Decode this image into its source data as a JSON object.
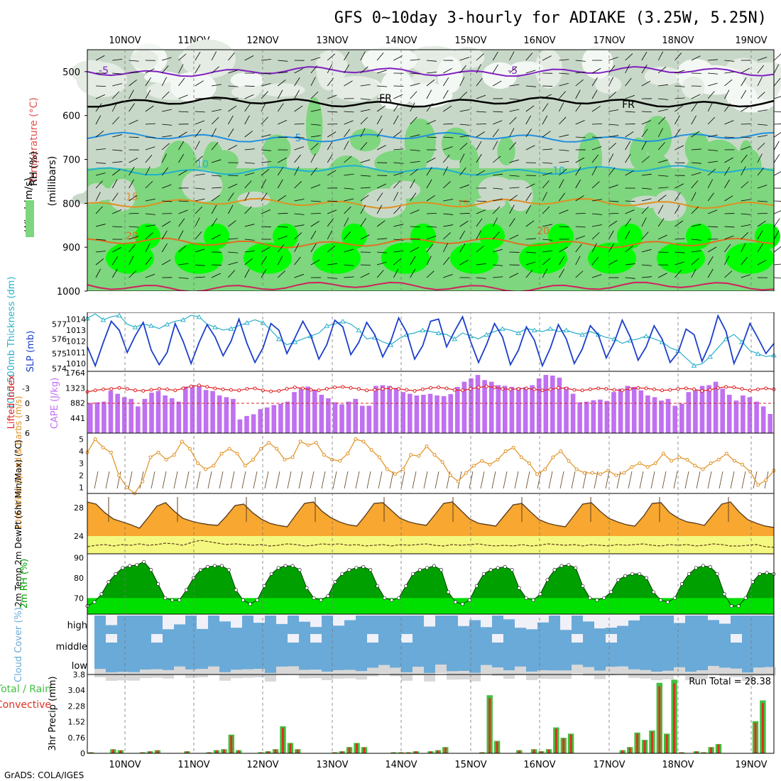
{
  "title": "GFS 0~10day 3-hourly for ADIAKE (3.25W, 5.25N)",
  "footer": "GrADS: COLA/IGES",
  "run_total_label": "Run Total = 28.38",
  "date_labels": [
    "10NOV",
    "11NOV",
    "12NOV",
    "13NOV",
    "14NOV",
    "15NOV",
    "16NOV",
    "17NOV",
    "18NOV",
    "19NOV"
  ],
  "colors": {
    "rh_light": "#c8d8c8",
    "rh_mid": "#7ed67e",
    "rh_bright": "#00ff00",
    "slp": "#1a3fcc",
    "thickness": "#2ab0c8",
    "cape": "#c070f0",
    "li": "#e02020",
    "wind": "#e09020",
    "temp": "#f8a830",
    "temp_max": "#e06010",
    "dew_fill": "#f4f880",
    "rh2m": "#00a000",
    "cloud": "#6aaad8",
    "cloud_clear": "#d8d8d8",
    "precip_total": "#40c040",
    "precip_conv": "#e03020"
  },
  "chart_data": [
    {
      "type": "heatmap",
      "name": "upper_air",
      "ylabel_parts": [
        "RH (%)",
        "Temperature (°C)",
        "Wind (m/s)"
      ],
      "ylabel_unit": "(millibars)",
      "yticks": [
        500,
        600,
        700,
        800,
        900,
        1000
      ],
      "ylim": [
        450,
        1000
      ],
      "isotherm_labels": [
        "-5",
        "-5",
        "FR",
        "FR",
        "5",
        "10",
        "10",
        "15",
        "15",
        "20",
        "20"
      ],
      "isotherms_hpa": [
        {
          "label": "-5",
          "p": 500
        },
        {
          "label": "FR",
          "p": 570
        },
        {
          "label": "5",
          "p": 650
        },
        {
          "label": "10",
          "p": 725
        },
        {
          "label": "15",
          "p": 800
        },
        {
          "label": "20",
          "p": 890
        },
        {
          "label": "25",
          "p": 990
        }
      ]
    },
    {
      "type": "line",
      "name": "slp_thickness",
      "ylabel_left": "1000-500mb Thickness (dm)",
      "ylabel_right": "SLP (mb)",
      "left_ticks": [
        "577",
        "576",
        "575",
        "574"
      ],
      "right_ticks": [
        "1014",
        "1013",
        "1012",
        "1011",
        "1010"
      ],
      "slp": [
        1011.5,
        1009.8,
        1011.9,
        1013.8,
        1013.0,
        1011.0,
        1012.5,
        1013.7,
        1011.2,
        1009.9,
        1011.0,
        1013.6,
        1012.0,
        1010.0,
        1011.9,
        1013.5,
        1012.4,
        1010.7,
        1012.0,
        1014.0,
        1011.8,
        1010.1,
        1011.4,
        1013.6,
        1013.0,
        1010.9,
        1012.3,
        1013.8,
        1012.5,
        1010.4,
        1011.7,
        1013.9,
        1013.3,
        1010.8,
        1011.9,
        1013.7,
        1012.6,
        1010.6,
        1012.0,
        1014.1,
        1012.8,
        1010.4,
        1011.6,
        1013.8,
        1014.0,
        1011.5,
        1012.9,
        1014.2,
        1012.0,
        1010.1,
        1011.7,
        1013.6,
        1012.4,
        1009.9,
        1011.2,
        1013.3,
        1012.1,
        1009.8,
        1011.4,
        1013.5,
        1012.2,
        1010.0,
        1011.3,
        1013.4,
        1012.6,
        1010.5,
        1011.9,
        1013.9,
        1012.4,
        1010.3,
        1011.5,
        1013.4,
        1012.2,
        1010.1,
        1011.0,
        1013.1,
        1012.6,
        1010.2,
        1011.8,
        1014.3,
        1012.9,
        1010.0,
        1011.6,
        1013.6,
        1012.3,
        1010.9,
        1011.8
      ],
      "thickness": [
        577.4,
        577.7,
        577.3,
        577.5,
        577.6,
        577.0,
        576.8,
        577.0,
        576.9,
        576.7,
        577.0,
        577.2,
        577.3,
        577.6,
        577.5,
        577.0,
        576.8,
        576.6,
        576.7,
        576.9,
        577.1,
        577.3,
        577.1,
        576.6,
        576.0,
        575.6,
        575.8,
        576.0,
        576.2,
        576.4,
        576.9,
        577.0,
        577.2,
        577.0,
        576.6,
        576.0,
        576.1,
        575.8,
        575.6,
        576.0,
        576.3,
        576.4,
        576.6,
        576.5,
        576.4,
        576.3,
        576.0,
        576.4,
        576.2,
        576.0,
        576.3,
        576.5,
        576.7,
        576.6,
        576.4,
        576.7,
        576.6,
        576.5,
        576.7,
        576.5,
        576.6,
        576.4,
        576.3,
        576.5,
        576.3,
        576.1,
        576.0,
        575.7,
        575.9,
        576.0,
        576.2,
        576.0,
        575.8,
        575.4,
        575.2,
        574.7,
        574.2,
        574.3,
        574.8,
        575.4,
        576.0,
        576.3,
        575.8,
        575.2,
        575.0,
        574.8,
        574.9
      ]
    },
    {
      "type": "bar",
      "name": "cape_li",
      "ylabel_left": "Lifted Index",
      "ylabel_right": "CAPE (J/kg)",
      "left_ticks": [
        "-3",
        "0",
        "3",
        "6"
      ],
      "right_ticks": [
        "1764",
        "1323",
        "882",
        "441"
      ],
      "cape_ylim": [
        0,
        1764
      ],
      "cape": [
        882,
        900,
        920,
        1240,
        1150,
        1050,
        1000,
        780,
        1000,
        1180,
        1230,
        1100,
        1020,
        920,
        1360,
        1400,
        1370,
        1260,
        1230,
        1100,
        1050,
        1000,
        400,
        500,
        550,
        700,
        750,
        820,
        860,
        920,
        1200,
        1300,
        1360,
        1260,
        1120,
        1020,
        900,
        840,
        920,
        1000,
        800,
        800,
        1380,
        1400,
        1380,
        1320,
        1200,
        1150,
        1100,
        1120,
        1150,
        1100,
        1080,
        1140,
        1350,
        1500,
        1600,
        1700,
        1550,
        1500,
        1400,
        1380,
        1350,
        1330,
        1340,
        1400,
        1600,
        1700,
        1680,
        1620,
        1350,
        1150,
        900,
        920,
        960,
        980,
        940,
        1200,
        1300,
        1380,
        1350,
        1250,
        1100,
        1050,
        950,
        1000,
        800,
        860,
        1200,
        1260,
        1380,
        1400,
        1500,
        1300,
        1120,
        950,
        1100,
        1050,
        920,
        780,
        560
      ],
      "li": [
        -2.3,
        -2.6,
        -2.8,
        -2.9,
        -3.1,
        -2.9,
        -2.6,
        -2.5,
        -2.7,
        -2.9,
        -2.8,
        -2.6,
        -3.0,
        -3.4,
        -3.6,
        -3.3,
        -3.0,
        -2.8,
        -2.7,
        -2.6,
        -2.9,
        -3.0,
        -2.6,
        -2.4,
        -2.5,
        -2.9,
        -3.2,
        -3.0,
        -2.7,
        -2.6,
        -2.9,
        -3.2,
        -3.3,
        -3.1,
        -2.9,
        -2.6,
        -2.7,
        -2.9,
        -3.0,
        -2.9,
        -2.7,
        -2.5,
        -2.8,
        -3.1,
        -3.2,
        -3.0,
        -2.7,
        -2.6,
        -2.9,
        -3.2,
        -3.4,
        -3.2,
        -2.9,
        -2.8,
        -2.9,
        -3.0,
        -2.8,
        -2.6,
        -2.8,
        -3.1,
        -3.0,
        -2.7,
        -2.6,
        -2.8,
        -3.0,
        -2.9,
        -2.7,
        -2.6,
        -2.9,
        -3.1,
        -3.0,
        -2.8,
        -2.6,
        -2.7,
        -2.9,
        -3.0,
        -2.8,
        -2.5,
        -2.7,
        -3.1,
        -3.3,
        -3.2,
        -2.9,
        -2.6,
        -2.8,
        -3.0,
        -2.8
      ]
    },
    {
      "type": "line",
      "name": "wind10m",
      "ylabel": "10m Wind Speed & Barbs (m/s)",
      "yticks": [
        "5",
        "4",
        "3",
        "2",
        "1"
      ],
      "ylim": [
        0.5,
        5.5
      ],
      "values": [
        3.9,
        5.0,
        4.3,
        3.9,
        2.0,
        1.0,
        0.5,
        1.5,
        3.5,
        3.9,
        3.3,
        3.7,
        4.8,
        4.2,
        3.0,
        2.5,
        2.8,
        3.8,
        4.2,
        3.8,
        2.8,
        3.3,
        4.2,
        4.7,
        4.2,
        3.3,
        3.5,
        4.8,
        4.5,
        4.7,
        3.7,
        3.3,
        3.2,
        3.8,
        5.0,
        4.8,
        4.1,
        3.5,
        2.5,
        2.1,
        2.5,
        3.7,
        3.6,
        4.4,
        3.7,
        3.1,
        2.0,
        1.5,
        2.2,
        2.8,
        3.2,
        2.9,
        3.3,
        4.0,
        4.3,
        3.5,
        3.0,
        2.1,
        2.5,
        3.5,
        4.0,
        3.2,
        2.5,
        2.2,
        2.2,
        2.1,
        2.4,
        2.0,
        2.2,
        2.7,
        3.0,
        2.7,
        3.0,
        3.8,
        3.2,
        3.5,
        3.3,
        2.8,
        2.5,
        3.0,
        3.3,
        3.8,
        3.2,
        2.9,
        2.3,
        1.2,
        1.6,
        2.4
      ]
    },
    {
      "type": "area",
      "name": "temp2m",
      "ylabel": "2m Temp 2m DewPt (6hr Min/Max) (°C)",
      "yticks": [
        "28",
        "24"
      ],
      "ylim": [
        21.5,
        30
      ],
      "temp": [
        28.8,
        28.5,
        27.3,
        26.4,
        26.0,
        25.6,
        25.1,
        26.6,
        28.2,
        28.7,
        27.5,
        26.5,
        26.1,
        25.8,
        25.6,
        25.5,
        26.8,
        28.3,
        28.5,
        27.3,
        26.4,
        25.8,
        25.5,
        25.3,
        27.0,
        28.6,
        28.8,
        27.5,
        26.6,
        26.0,
        25.6,
        25.4,
        26.9,
        28.6,
        28.7,
        27.6,
        26.5,
        26.0,
        25.7,
        25.5,
        27.0,
        28.6,
        28.8,
        27.6,
        26.4,
        25.8,
        25.6,
        25.4,
        26.9,
        28.4,
        28.6,
        27.4,
        26.3,
        25.8,
        25.5,
        25.3,
        26.9,
        28.5,
        28.7,
        27.5,
        26.5,
        26.0,
        25.6,
        25.4,
        26.8,
        28.6,
        28.7,
        27.3,
        26.5,
        26.0,
        25.8,
        25.5,
        27.0,
        28.5,
        28.8,
        27.4,
        26.3,
        25.8,
        25.4,
        25.2
      ],
      "dewpt": [
        22.5,
        22.7,
        22.8,
        22.6,
        22.8,
        22.7,
        22.9,
        22.7,
        22.8,
        23.0,
        22.9,
        22.7,
        23.1,
        23.4,
        23.2,
        23.0,
        22.8,
        22.9,
        22.8,
        22.7,
        22.8,
        22.6,
        22.7,
        22.9,
        22.8,
        22.6,
        22.7,
        22.9,
        22.8,
        22.9,
        22.7,
        22.8,
        22.6,
        22.7,
        22.8,
        22.6,
        22.8,
        22.7,
        22.8,
        22.9,
        22.7,
        22.6,
        22.8,
        22.7,
        22.8,
        22.9,
        22.7,
        22.6,
        22.7,
        22.6,
        22.8,
        22.6,
        22.7,
        22.9,
        22.8,
        22.7,
        22.8,
        22.6,
        22.8,
        22.7,
        22.6,
        22.8,
        22.7,
        22.8,
        22.9,
        22.7,
        22.6,
        22.8,
        22.7,
        22.8,
        22.6,
        22.7,
        22.9,
        22.8,
        22.6,
        22.6,
        22.7,
        22.8,
        22.5,
        22.4
      ]
    },
    {
      "type": "area",
      "name": "rh2m",
      "ylabel": "2m RH (%)",
      "yticks": [
        "90",
        "80",
        "70"
      ],
      "ylim": [
        62,
        92
      ],
      "values": [
        66,
        68,
        72,
        78,
        82,
        85,
        86,
        86.5,
        88,
        84,
        77,
        70,
        69,
        69,
        74,
        80,
        84,
        85.5,
        86,
        86,
        84,
        74,
        69,
        67,
        69,
        76,
        82,
        85,
        86,
        86,
        84,
        75,
        70,
        69,
        71,
        78,
        82,
        84,
        85,
        85.5,
        84,
        76,
        70,
        69,
        70,
        76,
        82,
        84,
        85,
        86,
        84,
        73,
        68,
        67,
        69,
        76,
        82,
        84,
        85,
        85.5,
        84,
        75,
        70,
        69,
        72,
        79,
        84,
        86,
        86.5,
        85,
        76,
        70,
        69,
        70,
        73,
        79,
        81,
        82,
        82,
        80,
        73,
        69,
        68,
        70,
        77,
        82,
        85,
        86,
        85.5,
        82,
        72,
        66,
        66,
        70,
        78,
        82,
        82.5,
        82
      ]
    },
    {
      "type": "bar",
      "name": "cloud",
      "ylabel": "Cloud Cover (%)",
      "levels": [
        "high",
        "middle",
        "low"
      ]
    },
    {
      "type": "bar",
      "name": "precip",
      "ylabel": "3hr Precip (mm)",
      "legend_left": "Total / Rain",
      "legend_left2": "Convective",
      "yticks": [
        "3.8",
        "3.04",
        "2.28",
        "1.52",
        "0.76",
        "0"
      ],
      "ylim": [
        0,
        3.8
      ],
      "values": [
        0.05,
        0,
        0,
        0.2,
        0.15,
        0,
        0,
        0.05,
        0.1,
        0.15,
        0,
        0,
        0,
        0.1,
        0,
        0,
        0.05,
        0.15,
        0.2,
        0.9,
        0.15,
        0,
        0,
        0.05,
        0.1,
        0.2,
        1.3,
        0.5,
        0.2,
        0,
        0,
        0,
        0,
        0.05,
        0.1,
        0.3,
        0.5,
        0.3,
        0,
        0,
        0,
        0.05,
        0.05,
        0.05,
        0.1,
        0,
        0.1,
        0.15,
        0.3,
        0,
        0,
        0,
        0,
        0.05,
        2.8,
        0.6,
        0,
        0,
        0.15,
        0,
        0.2,
        0.1,
        0.2,
        1.25,
        0.75,
        0.95,
        0,
        0,
        0,
        0,
        0,
        0,
        0.15,
        0.3,
        1.0,
        0.65,
        1.1,
        3.4,
        0.95,
        3.55,
        0.05,
        0,
        0.1,
        0.05,
        0.3,
        0.45,
        0,
        0,
        0,
        0,
        1.55,
        2.55,
        0
      ]
    }
  ]
}
